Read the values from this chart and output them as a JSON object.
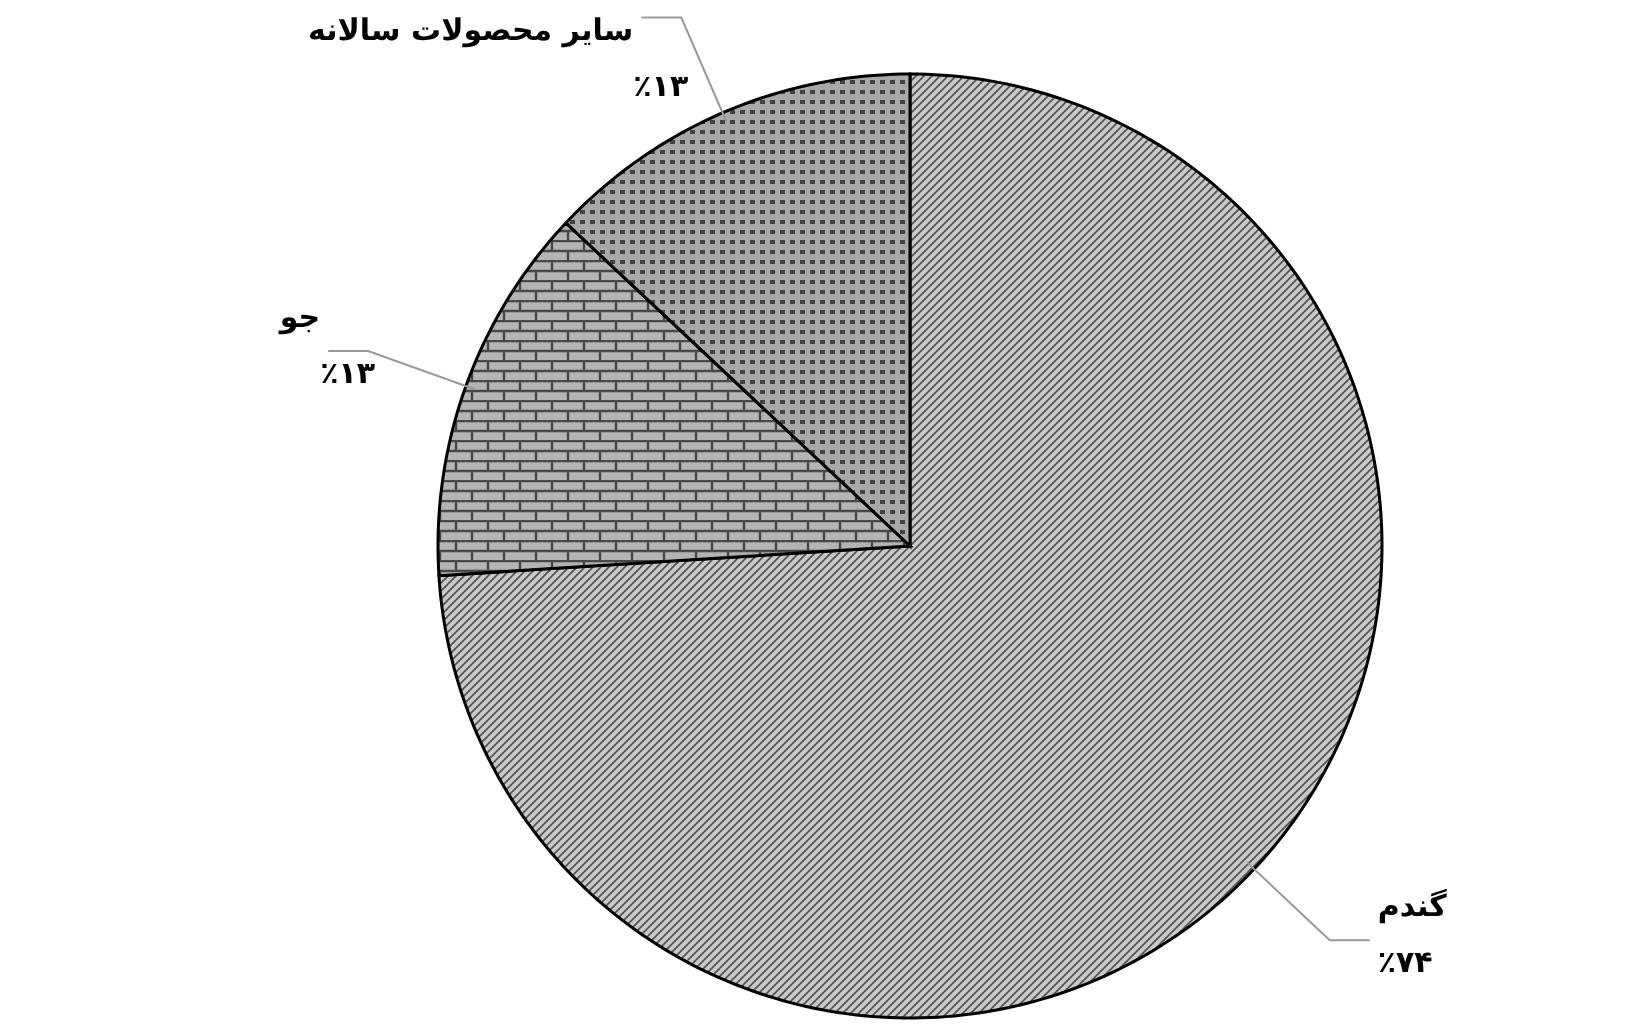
{
  "chart_data": {
    "type": "pie",
    "categories": [
      "گندم",
      "جو",
      "سایر محصولات سالانه"
    ],
    "values": [
      74,
      13,
      13
    ],
    "colors": [
      "#c8c8c8",
      "#b4b4b4",
      "#a8a8a8"
    ],
    "value_labels": [
      "٪۷۴",
      "٪۱۳",
      "٪۱۳"
    ]
  }
}
